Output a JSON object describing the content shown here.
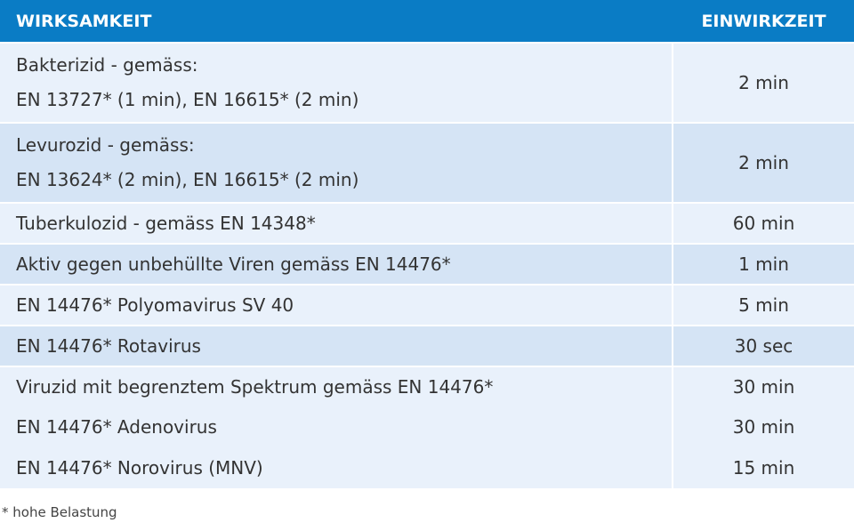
{
  "table": {
    "header": [
      "WIRKSAMKEIT",
      "EINWIRKZEIT"
    ],
    "rows": [
      [
        [
          "Bakterizid - gemäss:",
          "EN 13727* (1 min), EN 16615* (2 min)"
        ],
        "2 min"
      ],
      [
        [
          "Levurozid - gemäss:",
          "EN 13624* (2 min), EN 16615* (2 min)"
        ],
        "2 min"
      ],
      [
        [
          "Tuberkulozid - gemäss EN 14348*"
        ],
        "60 min"
      ],
      [
        [
          "Aktiv gegen unbehüllte Viren gemäss EN 14476*"
        ],
        "1 min"
      ],
      [
        [
          "EN 14476* Polyomavirus SV 40"
        ],
        "5 min"
      ],
      [
        [
          "EN 14476* Rotavirus"
        ],
        "30 sec"
      ],
      [
        [
          "Viruzid mit begrenztem Spektrum gemäss EN 14476*"
        ],
        "30 min"
      ],
      [
        [
          "EN 14476* Adenovirus"
        ],
        "30 min"
      ],
      [
        [
          "EN 14476* Norovirus (MNV)"
        ],
        "15 min"
      ]
    ]
  },
  "footnote": "* hohe Belastung"
}
